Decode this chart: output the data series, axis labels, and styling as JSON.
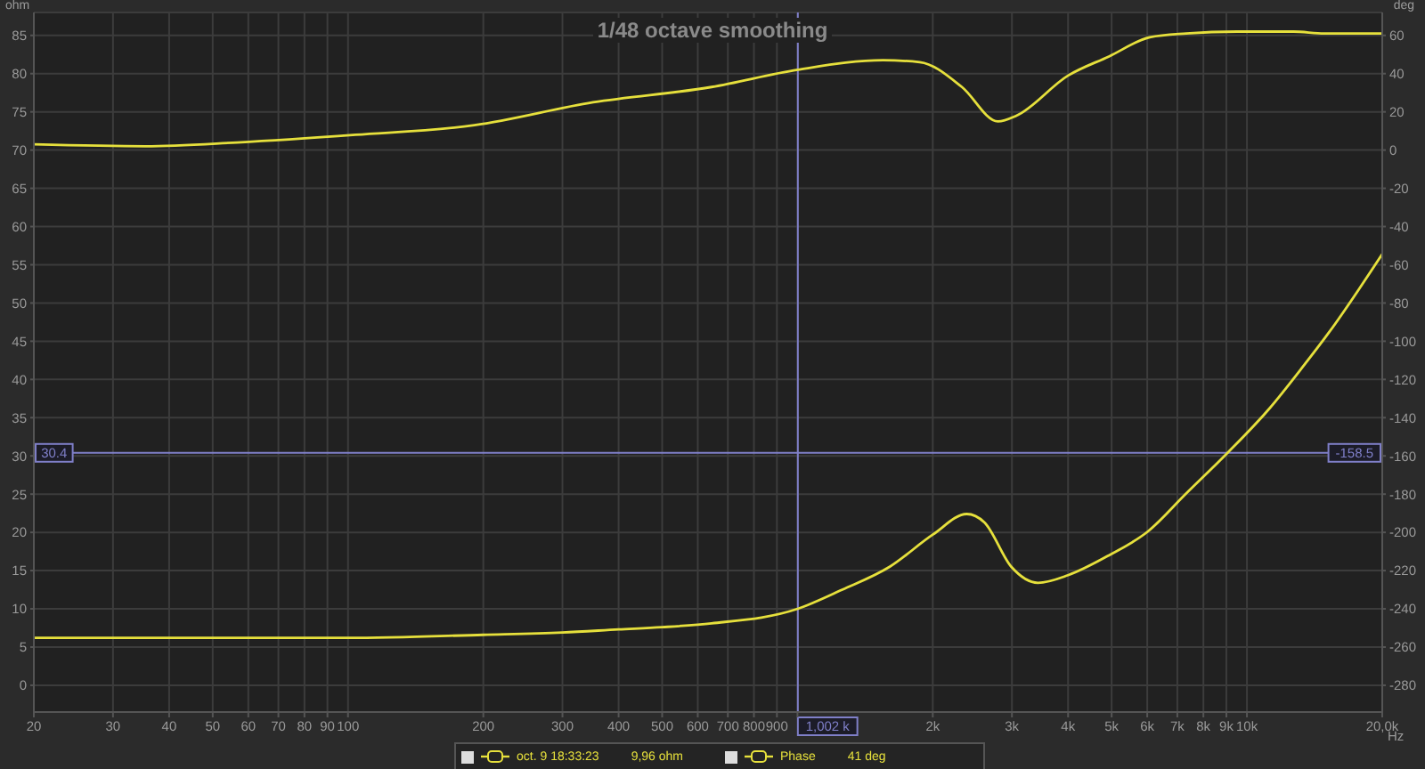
{
  "chart_data": {
    "type": "line",
    "title": "1/48 octave smoothing",
    "xlabel": "Hz",
    "ylabel": "ohm",
    "y2label": "deg",
    "log": "x",
    "grid": true,
    "legend": "bottom",
    "marker": "none",
    "line_style": "solid",
    "xlim": [
      20,
      20000
    ],
    "xticks": [
      20,
      30,
      40,
      50,
      60,
      70,
      80,
      90,
      100,
      200,
      300,
      400,
      500,
      600,
      700,
      800,
      900,
      {
        "value": 1000,
        "label": null
      },
      {
        "value": 2000,
        "label": "2k"
      },
      {
        "value": 3000,
        "label": "3k"
      },
      {
        "value": 4000,
        "label": "4k"
      },
      {
        "value": 5000,
        "label": "5k"
      },
      {
        "value": 6000,
        "label": "6k"
      },
      {
        "value": 7000,
        "label": "7k"
      },
      {
        "value": 8000,
        "label": "8k"
      },
      {
        "value": 9000,
        "label": "9k"
      },
      {
        "value": 10000,
        "label": "10k"
      },
      {
        "value": 20000,
        "label": "20,0k"
      }
    ],
    "ylim": [
      -3.5,
      88
    ],
    "yticks": [
      0,
      5,
      10,
      15,
      20,
      25,
      30,
      35,
      40,
      45,
      50,
      55,
      60,
      65,
      70,
      75,
      80,
      85
    ],
    "y2lim": [
      -294,
      72
    ],
    "y2ticks": [
      -280,
      -260,
      -240,
      -220,
      -200,
      -180,
      -160,
      -140,
      -120,
      -100,
      -80,
      -60,
      -40,
      -20,
      0,
      20,
      40,
      60
    ],
    "series": [
      {
        "name": "oct. 9 18:33:23",
        "color": "#e6e03c",
        "x": [
          20,
          50,
          100,
          200,
          300,
          400,
          500,
          644,
          1001,
          1258,
          1604,
          2000,
          2380,
          2606,
          2990,
          3428,
          4000,
          4932,
          6016,
          7330,
          9055,
          11220,
          13250,
          15200,
          20000
        ],
        "values": [
          6.2,
          6.2,
          6.2,
          6.6,
          6.9,
          7.3,
          7.6,
          8.1,
          10,
          12.5,
          15.5,
          19.7,
          22.4,
          21.3,
          15.5,
          13.4,
          14.4,
          17,
          20.1,
          25.1,
          30.4,
          36.2,
          41.5,
          46.1,
          56.4
        ]
      },
      {
        "name": "Phase",
        "color": "#e6e03c",
        "axis": "y2",
        "x": [
          20,
          35.4,
          56.7,
          104,
          191,
          351,
          644,
          1001,
          1550,
          1871,
          2322,
          2792,
          3070,
          4000,
          4932,
          6080,
          7330,
          9510,
          12700,
          14850,
          20000
        ],
        "values": [
          3,
          2,
          4,
          8,
          13,
          25,
          33,
          42,
          47,
          46,
          33,
          15,
          18,
          39,
          49,
          59,
          61,
          62,
          62,
          61,
          61
        ]
      }
    ],
    "ref_lines": [
      {
        "axis": "x",
        "value": 1002,
        "label": "1,002 k",
        "color": "#7f7fc8"
      },
      {
        "axis": "y",
        "value": 30.4,
        "label": "30.4",
        "color": "#7f7fc8"
      }
    ],
    "annotations": [
      "9,96 ohm",
      "41 deg",
      {
        "text": "-158.5",
        "x": 20000,
        "y": 30.4
      }
    ]
  }
}
